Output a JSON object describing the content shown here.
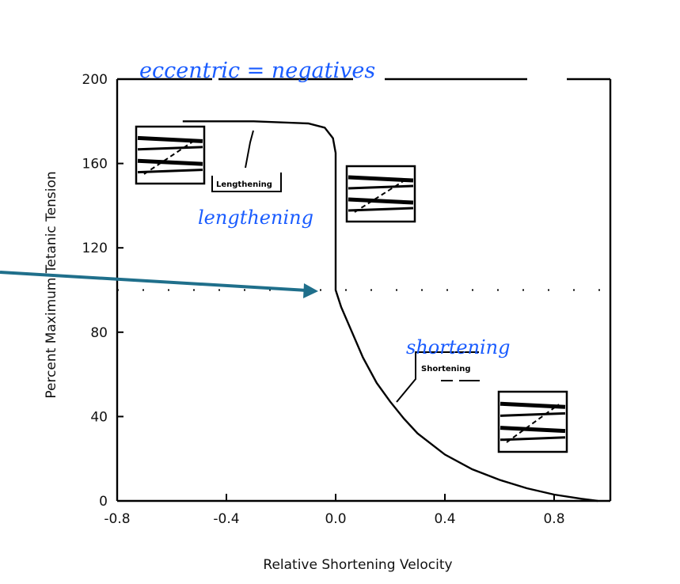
{
  "chart_data": {
    "type": "line",
    "title": "",
    "xlabel": "Relative Shortening Velocity",
    "ylabel": "Percent Maximum Tetanic Tension",
    "xlim": [
      -0.8,
      1.0
    ],
    "ylim": [
      0,
      200
    ],
    "xticks": [
      "-0.8",
      "-0.4",
      "0.0",
      "0.4",
      "0.8"
    ],
    "xtick_values": [
      -0.8,
      -0.4,
      0.0,
      0.4,
      0.8
    ],
    "yticks": [
      "0",
      "40",
      "80",
      "120",
      "160",
      "200"
    ],
    "ytick_values": [
      0,
      40,
      80,
      120,
      160,
      200
    ],
    "grid": false,
    "series": [
      {
        "x": [
          -0.56,
          -0.3,
          -0.1,
          -0.04,
          -0.01,
          0.0,
          0.0,
          0.02,
          0.06,
          0.1,
          0.15,
          0.2,
          0.25,
          0.3,
          0.4,
          0.5,
          0.6,
          0.7,
          0.8,
          0.9,
          0.96
        ],
        "y": [
          180,
          180,
          179,
          177,
          172,
          165,
          100,
          92,
          80,
          68,
          56,
          47,
          39,
          32,
          22,
          15,
          10,
          6,
          3,
          1,
          0
        ]
      }
    ],
    "reference_line_y": 100,
    "annotations": {
      "printed_lengthening": "Lengthening",
      "printed_shortening": "Shortening",
      "handwritten_top": "eccentric = negatives",
      "handwritten_lengthening": "lengthening",
      "handwritten_shortening": "shortening"
    },
    "colors": {
      "curve": "#000000",
      "handwriting": "#1a5cff",
      "arrow": "#1f6f8b"
    }
  }
}
